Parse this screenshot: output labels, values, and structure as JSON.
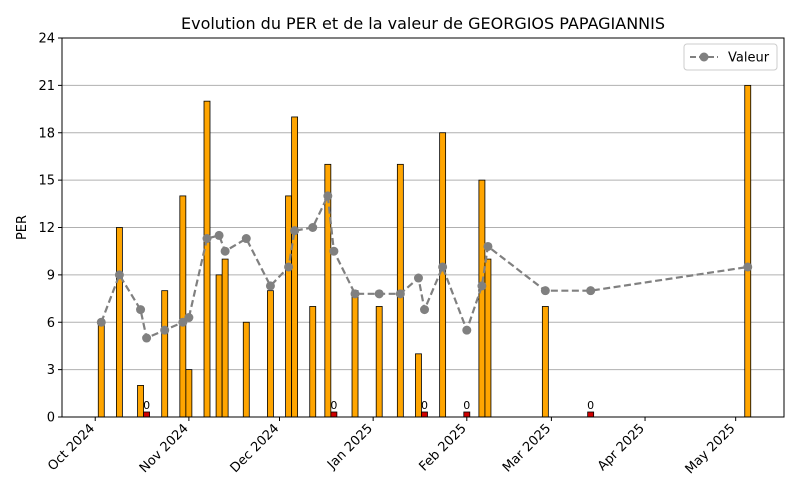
{
  "chart_data": {
    "type": "bar",
    "title": "Evolution du PER et de la valeur de GEORGIOS PAPAGIANNIS",
    "ylabel": "PER",
    "xlabel": "",
    "ylim": [
      0,
      24
    ],
    "yticks": [
      0,
      3,
      6,
      9,
      12,
      15,
      18,
      21,
      24
    ],
    "xlim": [
      "2024-09-20",
      "2025-05-17"
    ],
    "xticks": [
      {
        "date": "2024-10-01",
        "label": "Oct 2024"
      },
      {
        "date": "2024-11-01",
        "label": "Nov 2024"
      },
      {
        "date": "2024-12-01",
        "label": "Dec 2024"
      },
      {
        "date": "2025-01-01",
        "label": "Jan 2025"
      },
      {
        "date": "2025-02-01",
        "label": "Feb 2025"
      },
      {
        "date": "2025-03-01",
        "label": "Mar 2025"
      },
      {
        "date": "2025-04-01",
        "label": "Apr 2025"
      },
      {
        "date": "2025-05-01",
        "label": "May 2025"
      }
    ],
    "grid": "horizontal",
    "legend_position": "top-right",
    "bars": [
      {
        "date": "2024-10-03",
        "value": 6
      },
      {
        "date": "2024-10-09",
        "value": 12
      },
      {
        "date": "2024-10-16",
        "value": 2
      },
      {
        "date": "2024-10-18",
        "value": 0
      },
      {
        "date": "2024-10-24",
        "value": 8
      },
      {
        "date": "2024-10-30",
        "value": 14
      },
      {
        "date": "2024-11-01",
        "value": 3
      },
      {
        "date": "2024-11-07",
        "value": 20
      },
      {
        "date": "2024-11-11",
        "value": 9
      },
      {
        "date": "2024-11-13",
        "value": 10
      },
      {
        "date": "2024-11-20",
        "value": 6
      },
      {
        "date": "2024-11-28",
        "value": 8
      },
      {
        "date": "2024-12-04",
        "value": 14
      },
      {
        "date": "2024-12-06",
        "value": 19
      },
      {
        "date": "2024-12-12",
        "value": 7
      },
      {
        "date": "2024-12-17",
        "value": 16
      },
      {
        "date": "2024-12-19",
        "value": 0
      },
      {
        "date": "2024-12-26",
        "value": 8
      },
      {
        "date": "2025-01-03",
        "value": 7
      },
      {
        "date": "2025-01-10",
        "value": 16
      },
      {
        "date": "2025-01-16",
        "value": 4
      },
      {
        "date": "2025-01-18",
        "value": 0
      },
      {
        "date": "2025-01-24",
        "value": 18
      },
      {
        "date": "2025-02-01",
        "value": 0
      },
      {
        "date": "2025-02-06",
        "value": 15
      },
      {
        "date": "2025-02-08",
        "value": 10
      },
      {
        "date": "2025-02-27",
        "value": 7
      },
      {
        "date": "2025-03-14",
        "value": 0
      },
      {
        "date": "2025-05-05",
        "value": 21
      }
    ],
    "zero_label": "0",
    "series": [
      {
        "name": "Valeur",
        "style": "dashed line with circle markers",
        "color": "#808080",
        "points": [
          {
            "date": "2024-10-03",
            "value": 6.0
          },
          {
            "date": "2024-10-09",
            "value": 9.0
          },
          {
            "date": "2024-10-16",
            "value": 6.8
          },
          {
            "date": "2024-10-18",
            "value": 5.0
          },
          {
            "date": "2024-10-24",
            "value": 5.5
          },
          {
            "date": "2024-10-30",
            "value": 6.0
          },
          {
            "date": "2024-11-01",
            "value": 6.3
          },
          {
            "date": "2024-11-07",
            "value": 11.3
          },
          {
            "date": "2024-11-11",
            "value": 11.5
          },
          {
            "date": "2024-11-13",
            "value": 10.5
          },
          {
            "date": "2024-11-20",
            "value": 11.3
          },
          {
            "date": "2024-11-28",
            "value": 8.3
          },
          {
            "date": "2024-12-04",
            "value": 9.5
          },
          {
            "date": "2024-12-06",
            "value": 11.8
          },
          {
            "date": "2024-12-12",
            "value": 12.0
          },
          {
            "date": "2024-12-17",
            "value": 14.0
          },
          {
            "date": "2024-12-19",
            "value": 10.5
          },
          {
            "date": "2024-12-26",
            "value": 7.8
          },
          {
            "date": "2025-01-03",
            "value": 7.8
          },
          {
            "date": "2025-01-10",
            "value": 7.8
          },
          {
            "date": "2025-01-16",
            "value": 8.8
          },
          {
            "date": "2025-01-18",
            "value": 6.8
          },
          {
            "date": "2025-01-24",
            "value": 9.5
          },
          {
            "date": "2025-02-01",
            "value": 5.5
          },
          {
            "date": "2025-02-06",
            "value": 8.3
          },
          {
            "date": "2025-02-08",
            "value": 10.8
          },
          {
            "date": "2025-02-27",
            "value": 8.0
          },
          {
            "date": "2025-03-14",
            "value": 8.0
          },
          {
            "date": "2025-05-05",
            "value": 9.5
          }
        ]
      }
    ],
    "colors": {
      "bar": "#FFA500",
      "bar_zero": "#D00000",
      "bar_edge": "#000000",
      "line": "#808080",
      "grid": "#b0b0b0"
    }
  }
}
